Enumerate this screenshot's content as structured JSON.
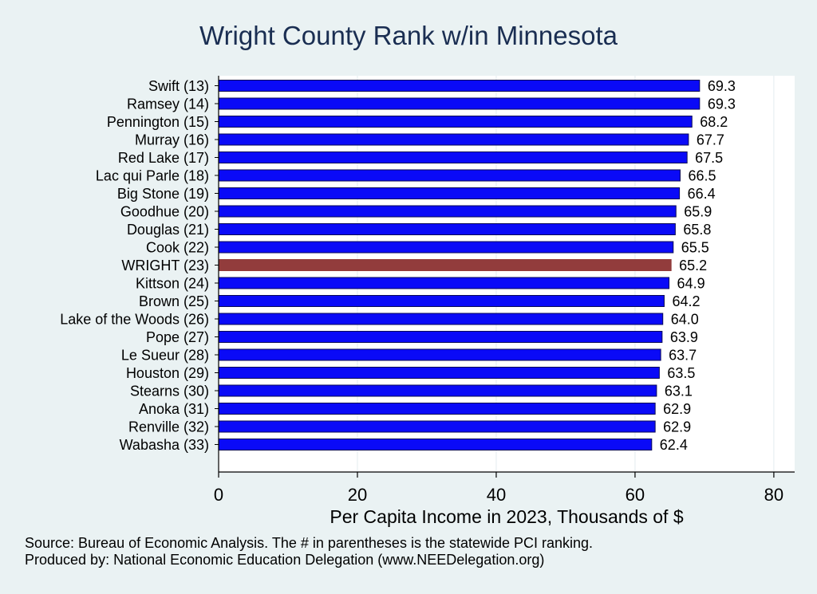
{
  "chart_data": {
    "type": "bar",
    "orientation": "horizontal",
    "title": "Wright County Rank w/in Minnesota",
    "xlabel": "Per Capita Income in 2023, Thousands of $",
    "xlim": [
      0,
      83
    ],
    "xticks": [
      0,
      20,
      40,
      60,
      80
    ],
    "grid": true,
    "categories": [
      "Swift (13)",
      "Ramsey (14)",
      "Pennington (15)",
      "Murray (16)",
      "Red Lake (17)",
      "Lac qui Parle (18)",
      "Big Stone (19)",
      "Goodhue (20)",
      "Douglas (21)",
      "Cook (22)",
      "WRIGHT (23)",
      "Kittson (24)",
      "Brown (25)",
      "Lake of the Woods (26)",
      "Pope (27)",
      "Le Sueur (28)",
      "Houston (29)",
      "Stearns (30)",
      "Anoka (31)",
      "Renville (32)",
      "Wabasha (33)"
    ],
    "values": [
      69.3,
      69.3,
      68.2,
      67.7,
      67.5,
      66.5,
      66.4,
      65.9,
      65.8,
      65.5,
      65.2,
      64.9,
      64.2,
      64.0,
      63.9,
      63.7,
      63.5,
      63.1,
      62.9,
      62.9,
      62.4
    ],
    "value_labels": [
      "69.3",
      "69.3",
      "68.2",
      "67.7",
      "67.5",
      "66.5",
      "66.4",
      "65.9",
      "65.8",
      "65.5",
      "65.2",
      "64.9",
      "64.2",
      "64.0",
      "63.9",
      "63.7",
      "63.5",
      "63.1",
      "62.9",
      "62.9",
      "62.4"
    ],
    "highlight_category": "WRIGHT (23)",
    "colors": {
      "bar": "#0a0af7",
      "highlight": "#923c3c",
      "bar_edge": "#0a0a55"
    }
  },
  "notes": {
    "source": "Source: Bureau of Economic Analysis. The # in parentheses is the statewide PCI ranking.",
    "producer": "Produced by: National Economic Education Delegation (www.NEEDelegation.org)"
  }
}
